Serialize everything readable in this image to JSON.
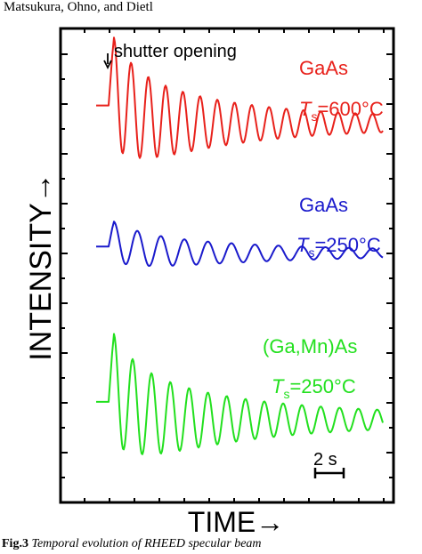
{
  "page": {
    "header": "Matsukura, Ohno, and Dietl",
    "caption_label": "Fig.3",
    "caption_text": "Temporal evolution of RHEED specular beam"
  },
  "chart_data": {
    "type": "line",
    "xlabel": "TIME→",
    "ylabel": "INTENSITY→",
    "annotation": "shutter opening",
    "scale_bar": {
      "label": "2 s",
      "length_s": 2
    },
    "grid": false,
    "y_ticks_labeled": false,
    "x_ticks_labeled": false,
    "series": [
      {
        "name": "GaAs",
        "condition_symbol": "T",
        "condition_sub": "s",
        "condition_value": "=600",
        "condition_unit": "°C",
        "color": "#e8211b",
        "baseline": 0.84,
        "initial_amplitude": 0.19,
        "period_s": 0.55,
        "num_oscillations": 22,
        "decay": "damped"
      },
      {
        "name": "GaAs",
        "condition_symbol": "T",
        "condition_sub": "s",
        "condition_value": "=250",
        "condition_unit": "°C",
        "color": "#1a1acc",
        "baseline": 0.54,
        "initial_amplitude": 0.07,
        "period_s": 0.75,
        "num_oscillations": 13,
        "decay": "damped"
      },
      {
        "name": "(Ga,Mn)As",
        "condition_symbol": "T",
        "condition_sub": "s",
        "condition_value": "=250",
        "condition_unit": "°C",
        "color": "#22e01e",
        "baseline": 0.21,
        "initial_amplitude": 0.19,
        "period_s": 0.6,
        "num_oscillations": 20,
        "decay": "damped"
      }
    ]
  }
}
